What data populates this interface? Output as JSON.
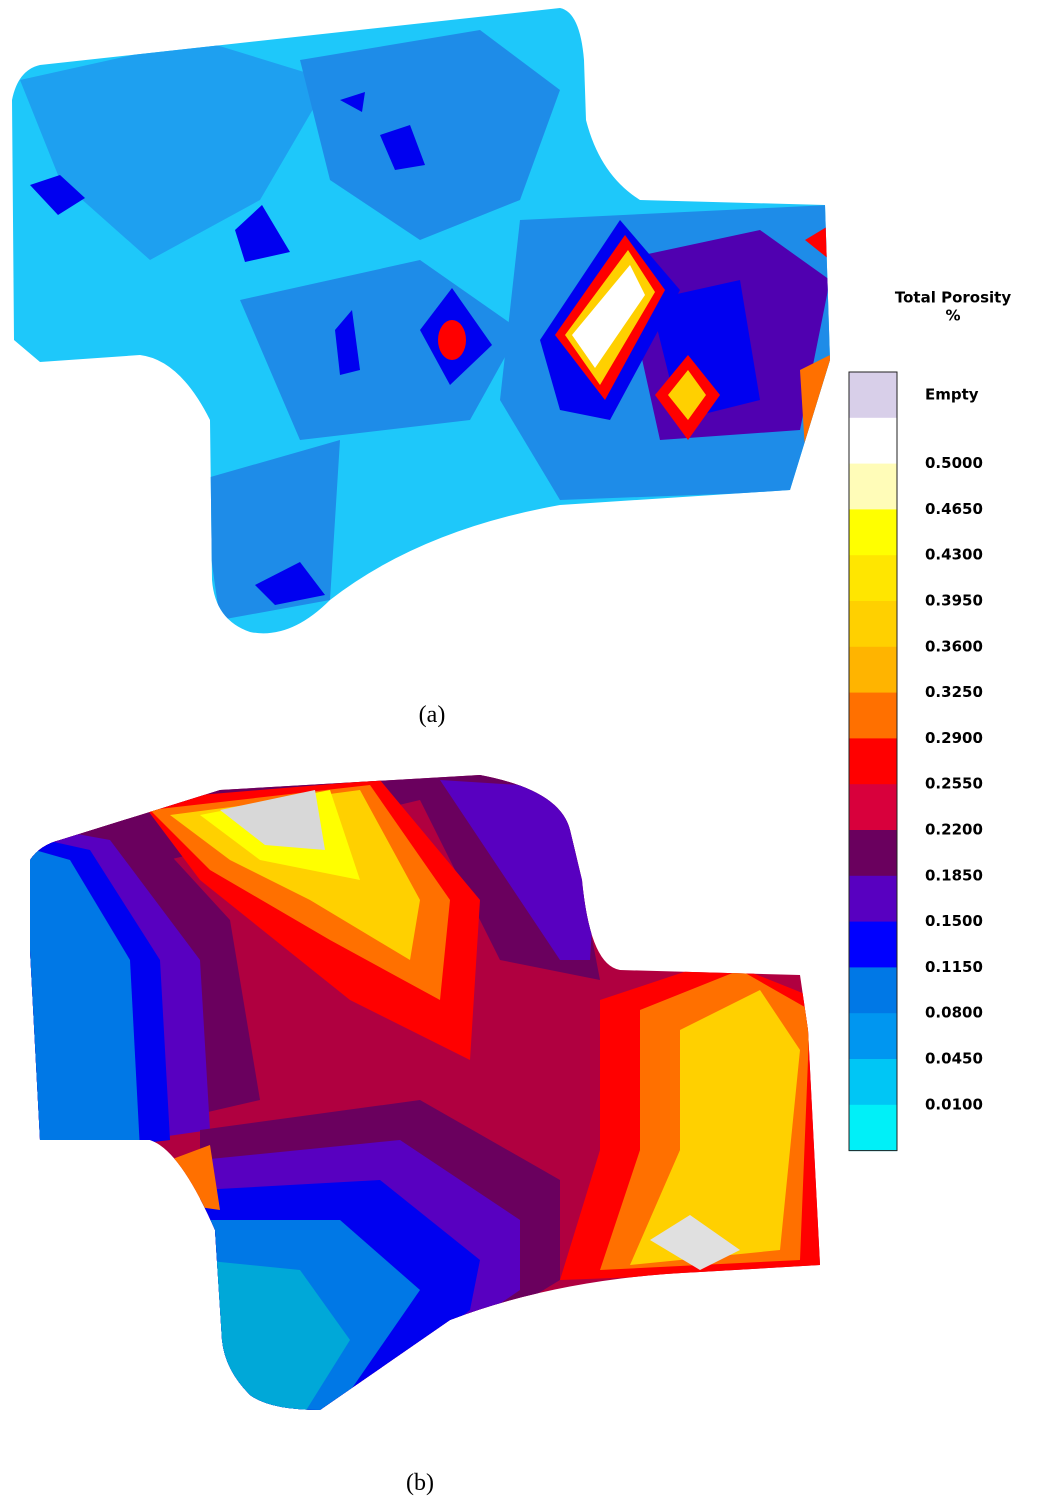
{
  "figure": {
    "panel_a": {
      "caption": "(a)"
    },
    "panel_b": {
      "caption": "(b)"
    },
    "legend": {
      "title": "Total Porosity",
      "unit": "%",
      "colors": [
        "#d8cfe9",
        "#ffffff",
        "#fffcb8",
        "#ffff00",
        "#ffe600",
        "#ffd000",
        "#ffb400",
        "#ff7000",
        "#ff0000",
        "#d8003c",
        "#6a005e",
        "#5800c0",
        "#0000ff",
        "#0078e6",
        "#0096f0",
        "#00c6f5",
        "#00f0f8"
      ],
      "labels": [
        "Empty",
        "0.5000",
        "0.4650",
        "0.4300",
        "0.3950",
        "0.3600",
        "0.3250",
        "0.2900",
        "0.2550",
        "0.2200",
        "0.1850",
        "0.1500",
        "0.1150",
        "0.0800",
        "0.0450",
        "0.0100"
      ]
    }
  }
}
